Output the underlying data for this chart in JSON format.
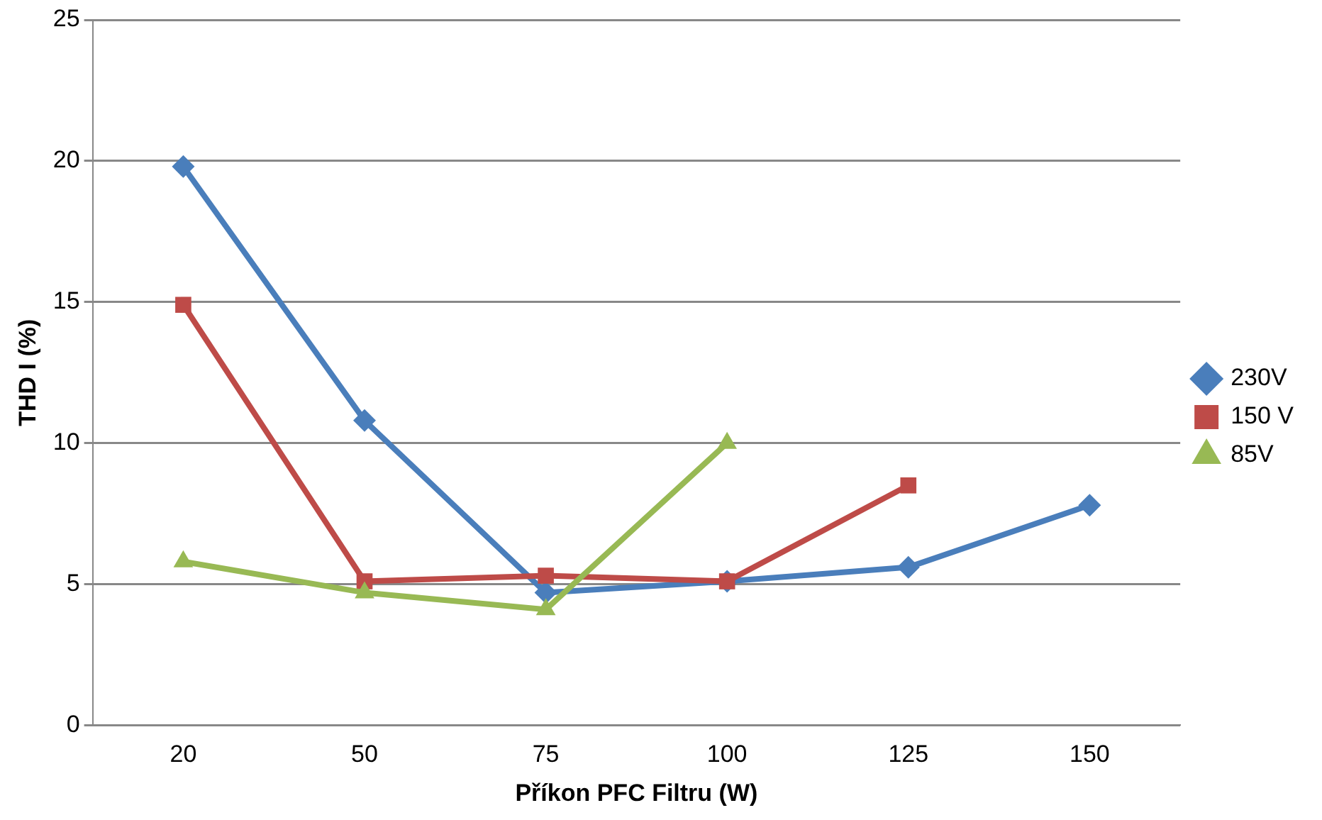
{
  "chart_data": {
    "type": "line",
    "xlabel": "Příkon PFC Filtru (W)",
    "ylabel": "THD I (%)",
    "categories": [
      "20",
      "50",
      "75",
      "100",
      "125",
      "150"
    ],
    "series": [
      {
        "name": "230V",
        "color": "#4a7ebb",
        "marker": "diamond",
        "values": [
          19.8,
          10.8,
          4.7,
          5.1,
          5.6,
          7.8
        ]
      },
      {
        "name": "150 V",
        "color": "#be4b48",
        "marker": "square",
        "values": [
          14.9,
          5.1,
          5.3,
          5.1,
          8.5,
          null
        ]
      },
      {
        "name": "85V",
        "color": "#98b954",
        "marker": "triangle",
        "values": [
          5.8,
          4.7,
          4.1,
          10.0,
          null,
          null
        ]
      }
    ],
    "ylim": [
      0,
      25
    ],
    "yticks": [
      0,
      5,
      10,
      15,
      20,
      25
    ],
    "grid": "y",
    "legend": "right"
  }
}
